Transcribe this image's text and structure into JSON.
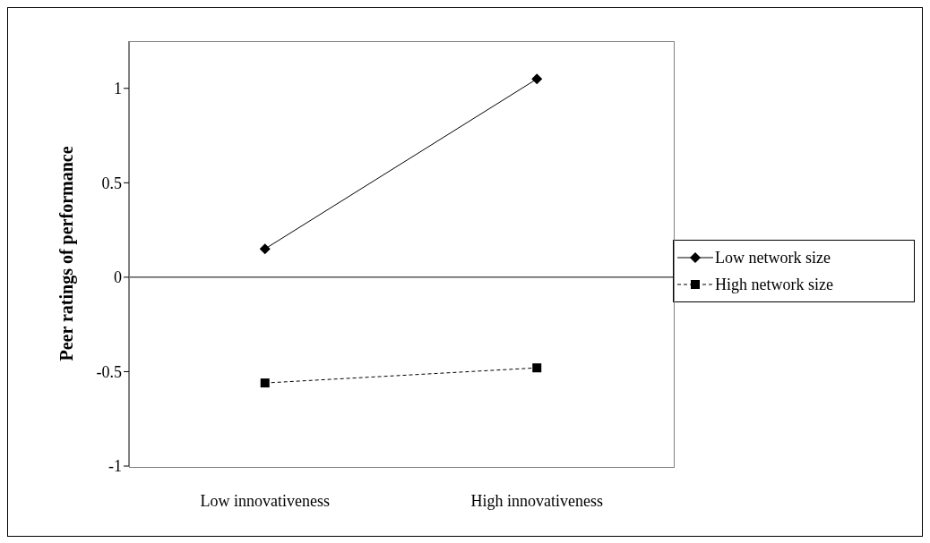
{
  "chart_data": {
    "type": "line",
    "ylabel": "Peer ratings of performance",
    "categories": [
      "Low innovativeness",
      "High innovativeness"
    ],
    "series": [
      {
        "name": "Low network size",
        "color": "#000000",
        "values": [
          0.15,
          1.05
        ],
        "marker": "diamond",
        "line_style": "solid"
      },
      {
        "name": "High network size",
        "color": "#000000",
        "values": [
          -0.56,
          -0.48
        ],
        "marker": "square",
        "line_style": "dashed"
      }
    ],
    "ylim": [
      -1,
      1.25
    ],
    "yticks": [
      -1,
      -0.5,
      0,
      0.5,
      1
    ],
    "ref_lines": [
      {
        "axis": "y",
        "value": 0,
        "color": "#000000"
      }
    ],
    "grid": false,
    "legend": "right"
  }
}
